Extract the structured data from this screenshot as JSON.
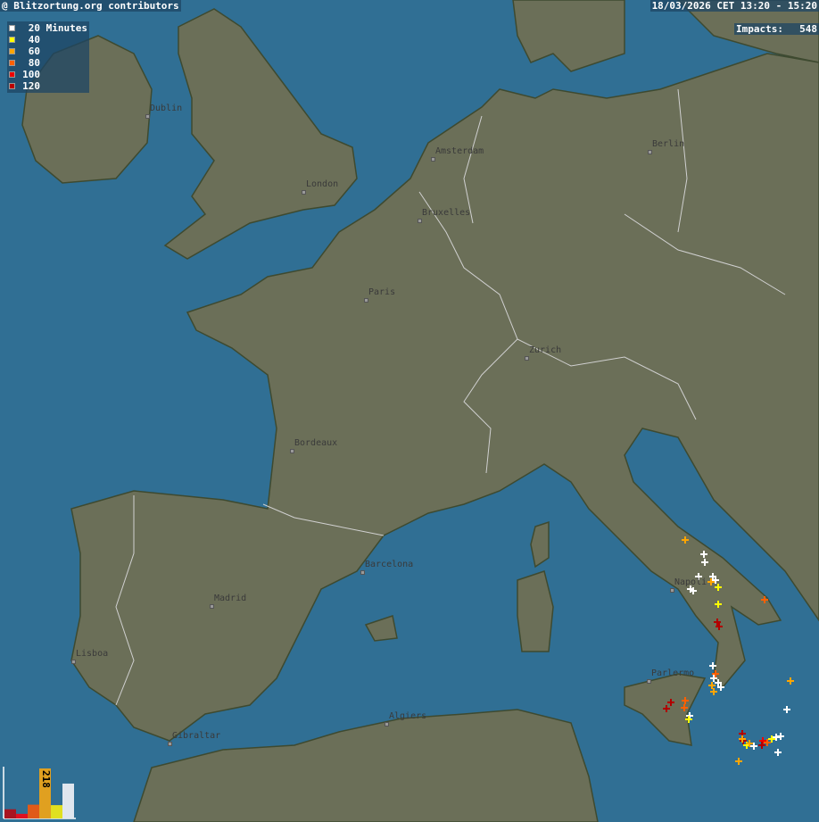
{
  "header": {
    "attribution": "@ Blitzortung.org contributors",
    "time_range": "18/03/2026 CET 13:20 - 15:20",
    "impacts_label": "Impacts:",
    "impacts_value": "548"
  },
  "legend": {
    "unit": "Minutes",
    "items": [
      {
        "value": "20",
        "color": "#ffffff"
      },
      {
        "value": "40",
        "color": "#ffff00"
      },
      {
        "value": "60",
        "color": "#ffa500"
      },
      {
        "value": "80",
        "color": "#ff6000"
      },
      {
        "value": "100",
        "color": "#ee0000"
      },
      {
        "value": "120",
        "color": "#b00000"
      }
    ]
  },
  "cities": [
    {
      "name": "Dublin"
    },
    {
      "name": "London"
    },
    {
      "name": "Amsterdam"
    },
    {
      "name": "Bruxelles"
    },
    {
      "name": "Paris"
    },
    {
      "name": "Berlin"
    },
    {
      "name": "Zurich"
    },
    {
      "name": "Bordeaux"
    },
    {
      "name": "Barcelona"
    },
    {
      "name": "Madrid"
    },
    {
      "name": "Lisboa"
    },
    {
      "name": "Gibraltar"
    },
    {
      "name": "Algiers"
    },
    {
      "name": "Napoli"
    },
    {
      "name": "Parlermo"
    }
  ],
  "histogram": {
    "categories": [
      "120",
      "100",
      "80",
      "60",
      "40",
      "20"
    ],
    "values": [
      40,
      20,
      60,
      218,
      58,
      152
    ],
    "colors": [
      "#a81420",
      "#e01020",
      "#e05a18",
      "#e0a020",
      "#e0e020",
      "#e0e6ee"
    ],
    "peak_label": "218"
  },
  "colors": {
    "sea": "#306f94",
    "land": "#6b6f58",
    "border": "#d0d0d0"
  }
}
